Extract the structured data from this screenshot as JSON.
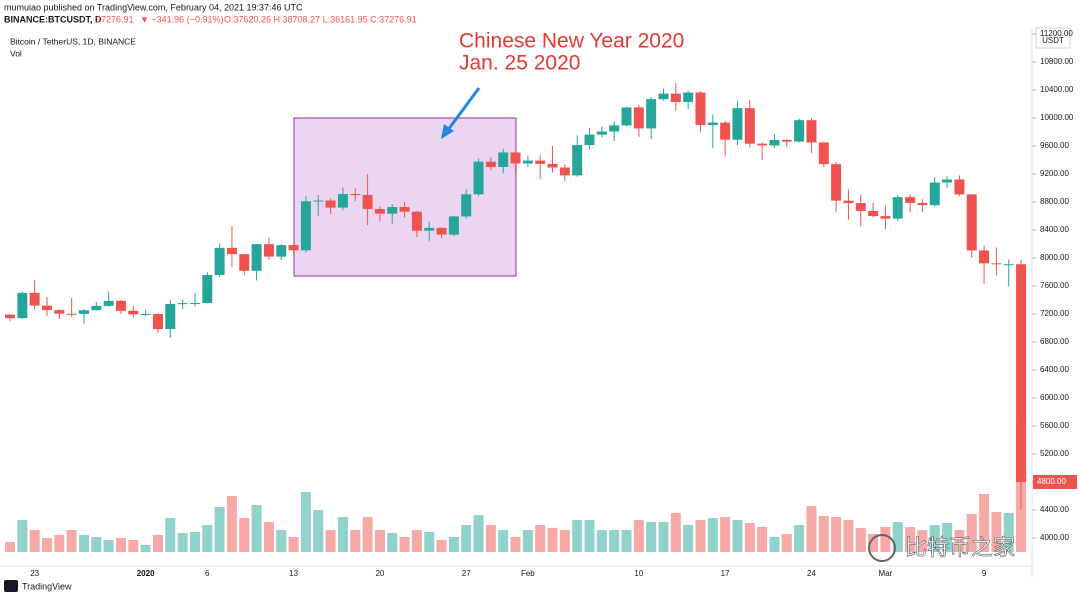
{
  "header": {
    "line1": "mumuiao published on TradingView.com, February 04, 2021 19:37:46 UTC",
    "symbol": "BINANCE:BTCUSDT, D",
    "price": "37276.91",
    "change": "▼ −341.96 (−0.91%)",
    "ohlc": "O:37620.26 H:38708.27 L:36161.95 C:37276.91"
  },
  "footer": {
    "brand": "TradingView",
    "watermark": "比特币之家"
  },
  "chart_data": {
    "type": "candlestick",
    "legend": "Bitcoin / TetherUS, 1D, BINANCE",
    "volume_label": "Vol",
    "axis_unit": "USDT",
    "annotations": [
      "Chinese New Year 2020",
      "Jan. 25 2020"
    ],
    "last_label": "4800.00",
    "up_color": "#26a69a",
    "down_color": "#ef5350",
    "grid": false,
    "categories": [
      null,
      null,
      "23",
      null,
      null,
      null,
      null,
      null,
      null,
      null,
      null,
      "2020",
      null,
      null,
      null,
      null,
      "6",
      null,
      null,
      null,
      null,
      null,
      null,
      "13",
      null,
      null,
      null,
      null,
      null,
      null,
      "20",
      null,
      null,
      null,
      null,
      null,
      null,
      "27",
      null,
      null,
      null,
      null,
      "Feb",
      null,
      null,
      null,
      null,
      null,
      null,
      null,
      null,
      "10",
      null,
      null,
      null,
      null,
      null,
      null,
      "17",
      null,
      null,
      null,
      null,
      null,
      null,
      "24",
      null,
      null,
      null,
      null,
      null,
      "Mar",
      null,
      null,
      null,
      null,
      null,
      null,
      null,
      "9",
      null,
      null,
      null
    ],
    "open": [
      7191,
      7141,
      7502,
      7320,
      7255,
      7204,
      7202,
      7254,
      7316,
      7388,
      7246,
      7195,
      7200,
      6985,
      7344,
      7355,
      7358,
      7758,
      8145,
      8055,
      7817,
      8198,
      8020,
      8184,
      8110,
      8811,
      8821,
      8720,
      8914,
      8901,
      8700,
      8633,
      8728,
      8662,
      8390,
      8430,
      8334,
      8594,
      8910,
      9377,
      9300,
      9508,
      9350,
      9392,
      9345,
      9293,
      9181,
      9613,
      9763,
      9807,
      9895,
      10151,
      9851,
      10269,
      10348,
      10228,
      10364,
      9900,
      9934,
      9690,
      10141,
      9633,
      9608,
      9687,
      9663,
      9969,
      9650,
      9341,
      8820,
      8784,
      8672,
      8599,
      8562,
      8869,
      8787,
      8755,
      9078,
      9122,
      8909,
      8108,
      7924,
      7909,
      7911
    ],
    "high": [
      7200,
      7520,
      7690,
      7440,
      7270,
      7430,
      7270,
      7370,
      7520,
      7400,
      7320,
      7260,
      7210,
      7400,
      7400,
      7500,
      7800,
      8210,
      8460,
      8060,
      8200,
      8290,
      8200,
      8200,
      8880,
      8900,
      8850,
      9010,
      9000,
      9200,
      8740,
      8770,
      8800,
      8670,
      8520,
      8440,
      8600,
      8980,
      9420,
      9440,
      9560,
      9530,
      9460,
      9470,
      9600,
      9340,
      9750,
      9860,
      9880,
      9950,
      10160,
      10190,
      10300,
      10420,
      10500,
      10390,
      10380,
      10050,
      9960,
      10240,
      10260,
      9650,
      9770,
      9700,
      9990,
      10000,
      9660,
      9370,
      8980,
      8900,
      8790,
      8750,
      8900,
      8910,
      8840,
      9150,
      9170,
      9180,
      8910,
      8180,
      8150,
      7980,
      7970
    ],
    "low": [
      7100,
      7130,
      7270,
      7170,
      7130,
      7160,
      7060,
      7250,
      7300,
      7200,
      7150,
      7170,
      6930,
      6860,
      7270,
      7310,
      7350,
      7730,
      7870,
      7750,
      7680,
      7980,
      7970,
      8060,
      8080,
      8600,
      8630,
      8680,
      8810,
      8470,
      8520,
      8490,
      8580,
      8300,
      8240,
      8280,
      8310,
      8560,
      8880,
      9250,
      9210,
      9220,
      9300,
      9130,
      9220,
      9100,
      9160,
      9550,
      9720,
      9670,
      9880,
      9730,
      9700,
      10250,
      10100,
      10130,
      9800,
      9570,
      9450,
      9610,
      9580,
      9400,
      9570,
      9580,
      9650,
      9500,
      9300,
      8660,
      8550,
      8450,
      8580,
      8410,
      8530,
      8650,
      8650,
      8740,
      9000,
      8880,
      8000,
      7630,
      7750,
      7590,
      4410
    ],
    "close": [
      7141,
      7502,
      7320,
      7255,
      7204,
      7202,
      7254,
      7316,
      7388,
      7246,
      7195,
      7200,
      6985,
      7344,
      7355,
      7358,
      7758,
      8145,
      8055,
      7817,
      8198,
      8020,
      8184,
      8110,
      8811,
      8821,
      8720,
      8914,
      8901,
      8700,
      8633,
      8728,
      8662,
      8390,
      8430,
      8334,
      8594,
      8910,
      9377,
      9300,
      9508,
      9350,
      9392,
      9345,
      9293,
      9181,
      9613,
      9763,
      9807,
      9895,
      10151,
      9851,
      10269,
      10348,
      10228,
      10364,
      9900,
      9934,
      9690,
      10141,
      9633,
      9608,
      9687,
      9663,
      9969,
      9650,
      9341,
      8820,
      8784,
      8672,
      8599,
      8562,
      8869,
      8787,
      8755,
      9078,
      9122,
      8909,
      8108,
      7924,
      7909,
      7911,
      4800
    ],
    "volume": [
      10000,
      32000,
      22000,
      14000,
      17000,
      22000,
      17000,
      15000,
      12000,
      14000,
      12000,
      7000,
      17000,
      34000,
      19000,
      20000,
      27000,
      45000,
      56000,
      34000,
      47000,
      30000,
      22000,
      15000,
      60000,
      42000,
      22000,
      35000,
      22000,
      35000,
      22000,
      19000,
      15000,
      22000,
      20000,
      12000,
      15000,
      27000,
      37000,
      27000,
      22000,
      15000,
      22000,
      27000,
      24000,
      22000,
      32000,
      32000,
      22000,
      22000,
      22000,
      32000,
      30000,
      30000,
      39000,
      27000,
      32000,
      34000,
      35000,
      32000,
      29000,
      25000,
      15000,
      18000,
      27000,
      46000,
      36000,
      35000,
      32000,
      24000,
      18000,
      25000,
      30000,
      25000,
      22000,
      27000,
      29000,
      22000,
      38000,
      58000,
      40000,
      39000,
      130000
    ],
    "ylim": [
      3614,
      11286
    ],
    "yticks": [
      {
        "value": 11200,
        "label": "11200.00"
      },
      {
        "value": 10800,
        "label": "10800.00"
      },
      {
        "value": 10400,
        "label": "10400.00"
      },
      {
        "value": 10000,
        "label": "10000.00"
      },
      {
        "value": 9600,
        "label": "9600.00"
      },
      {
        "value": 9200,
        "label": "9200.00"
      },
      {
        "value": 8800,
        "label": "8800.00"
      },
      {
        "value": 8400,
        "label": "8400.00"
      },
      {
        "value": 8000,
        "label": "8000.00"
      },
      {
        "value": 7600,
        "label": "7600.00"
      },
      {
        "value": 7200,
        "label": "7200.00"
      },
      {
        "value": 6800,
        "label": "6800.00"
      },
      {
        "value": 6400,
        "label": "6400.00"
      },
      {
        "value": 6000,
        "label": "6000.00"
      },
      {
        "value": 5600,
        "label": "5600.00"
      },
      {
        "value": 5200,
        "label": "5200.00"
      },
      {
        "value": 4800,
        "label": "4800.00"
      },
      {
        "value": 4400,
        "label": "4400.00"
      },
      {
        "value": 4000,
        "label": "4000.00"
      }
    ]
  }
}
